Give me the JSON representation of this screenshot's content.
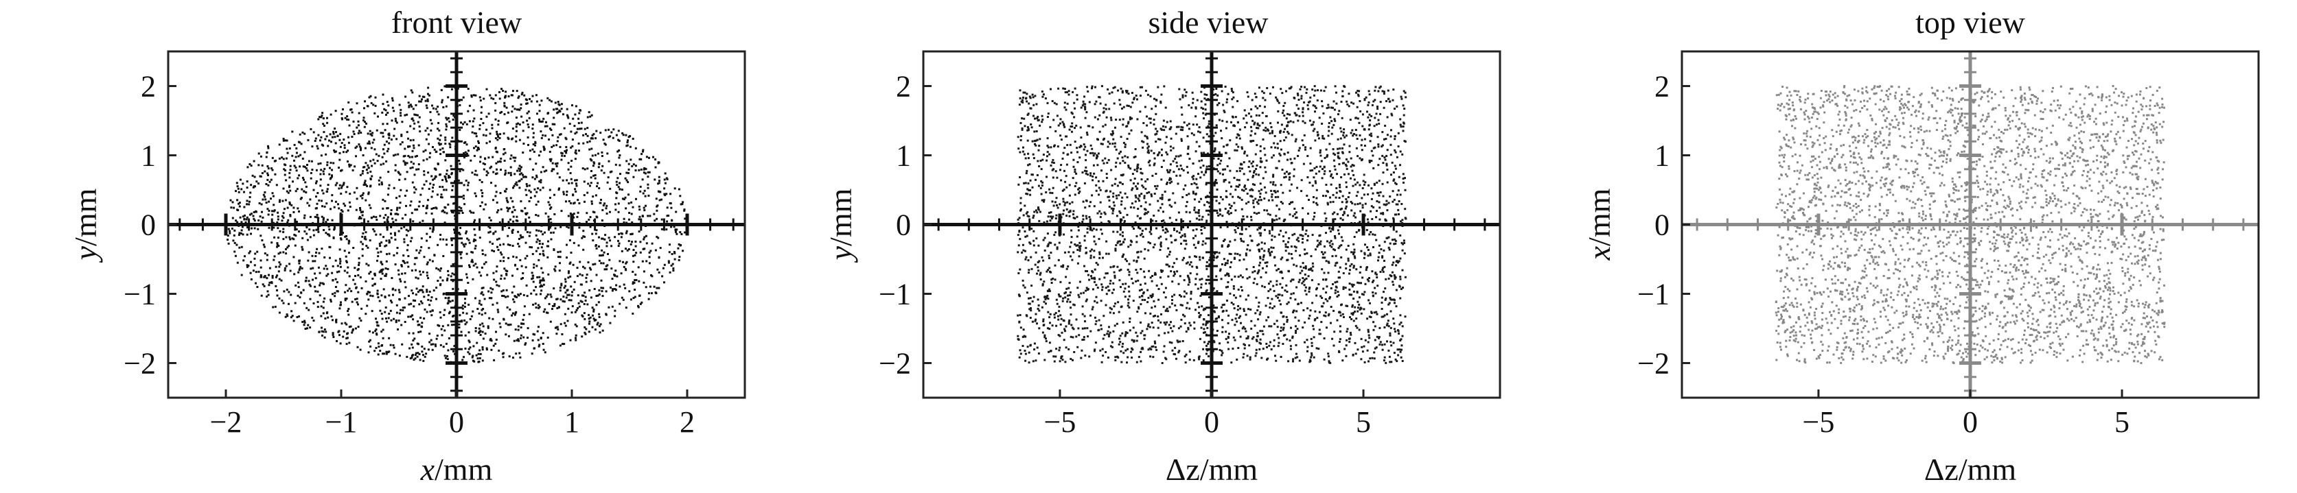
{
  "chart_data": [
    {
      "type": "scatter",
      "title": "front view",
      "xlabel_italic": "x",
      "xlabel_unit": "/mm",
      "ylabel_italic": "y",
      "ylabel_unit": "/mm",
      "xlim": [
        -2.5,
        2.5
      ],
      "ylim": [
        -2.5,
        2.5
      ],
      "xticks": [
        -2,
        -1,
        0,
        1,
        2
      ],
      "xtick_labels": [
        "−2",
        "−1",
        "0",
        "1",
        "2"
      ],
      "yticks": [
        -2,
        -1,
        0,
        1,
        2
      ],
      "ytick_labels": [
        "−2",
        "−1",
        "0",
        "1",
        "2"
      ],
      "point_color": "#111111",
      "distribution": {
        "shape": "ellipse",
        "x_range": [
          -2,
          2
        ],
        "y_range": [
          -2,
          2
        ]
      }
    },
    {
      "type": "scatter",
      "title": "side view",
      "xlabel_italic": "",
      "xlabel_unit": "Δz/mm",
      "ylabel_italic": "y",
      "ylabel_unit": "/mm",
      "xlim": [
        -9.5,
        9.5
      ],
      "ylim": [
        -2.5,
        2.5
      ],
      "xticks": [
        -5,
        0,
        5
      ],
      "xtick_labels": [
        "−5",
        "0",
        "5"
      ],
      "yticks": [
        -2,
        -1,
        0,
        1,
        2
      ],
      "ytick_labels": [
        "−2",
        "−1",
        "0",
        "1",
        "2"
      ],
      "point_color": "#1a1a1a",
      "distribution": {
        "shape": "rectangle",
        "x_range": [
          -6.4,
          6.4
        ],
        "y_range": [
          -2,
          2
        ]
      }
    },
    {
      "type": "scatter",
      "title": "top view",
      "xlabel_italic": "",
      "xlabel_unit": "Δz/mm",
      "ylabel_italic": "x",
      "ylabel_unit": "/mm",
      "xlim": [
        -9.5,
        9.5
      ],
      "ylim": [
        -2.5,
        2.5
      ],
      "xticks": [
        -5,
        0,
        5
      ],
      "xtick_labels": [
        "−5",
        "0",
        "5"
      ],
      "yticks": [
        -2,
        -1,
        0,
        1,
        2
      ],
      "ytick_labels": [
        "−2",
        "−1",
        "0",
        "1",
        "2"
      ],
      "point_color": "#888888",
      "distribution": {
        "shape": "rectangle",
        "x_range": [
          -6.4,
          6.4
        ],
        "y_range": [
          -2,
          2
        ]
      }
    }
  ]
}
